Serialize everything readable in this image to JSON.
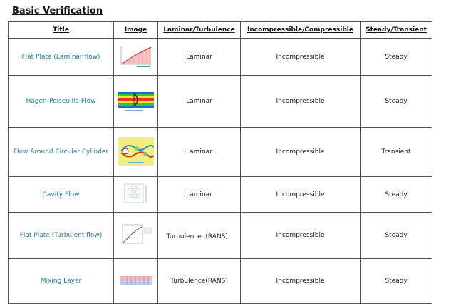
{
  "page": {
    "title": "Basic Verification"
  },
  "table": {
    "headers": [
      "Title",
      "Image",
      "Laminar/Turbulence",
      "Incompressible/Compressible",
      "Steady/Transient"
    ],
    "rows": [
      {
        "title": "Flat Plate (Laminar flow)",
        "thumbnail": "flat-plate-laminar-plot",
        "flow": "Laminar",
        "compressibility": "Incompressible",
        "time": "Steady"
      },
      {
        "title": "Hagen-Poiseuille Flow",
        "thumbnail": "hagen-poiseuille-contour",
        "flow": "Laminar",
        "compressibility": "Incompressible",
        "time": "Steady"
      },
      {
        "title": "Flow Around Circular Cylinder",
        "thumbnail": "cylinder-vortex-contour",
        "flow": "Laminar",
        "compressibility": "Incompressible",
        "time": "Transient"
      },
      {
        "title": "Cavity Flow",
        "thumbnail": "cavity-flow-streamlines",
        "flow": "Laminar",
        "compressibility": "Incompressible",
        "time": "Steady"
      },
      {
        "title": "Flat Plate (Turbulent flow)",
        "thumbnail": "flat-plate-turbulent-plot",
        "flow": "Turbulence（RANS）",
        "compressibility": "Incompressible",
        "time": "Steady"
      },
      {
        "title": "Mixing Layer",
        "thumbnail": "mixing-layer-contour",
        "flow": "Turbulence(RANS)",
        "compressibility": "Incompressible",
        "time": "Steady"
      }
    ]
  },
  "colors": {
    "link": "#1a8a9a",
    "border": "#555555"
  }
}
